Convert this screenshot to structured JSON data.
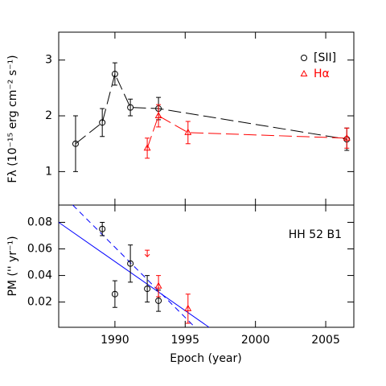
{
  "chart_data": [
    {
      "type": "line",
      "ylabel": "Fλ (10⁻¹⁵ erg cm⁻² s⁻¹)",
      "xlim": [
        1986,
        2007
      ],
      "xticks": [
        1990,
        1995,
        2000,
        2005
      ],
      "ylim": [
        0.4,
        3.5
      ],
      "yticks": [
        1,
        2,
        3
      ],
      "legend": "upper right",
      "series": [
        {
          "name": "[SII]",
          "color": "#000000",
          "marker": "circle",
          "x": [
            1987.2,
            1989.1,
            1990.0,
            1991.1,
            1993.1,
            2006.5
          ],
          "values": [
            1.5,
            1.88,
            2.75,
            2.15,
            2.13,
            1.58
          ],
          "errors": [
            0.5,
            0.25,
            0.2,
            0.15,
            0.2,
            0.2
          ]
        },
        {
          "name": "Hα",
          "color": "#ff0000",
          "marker": "triangle",
          "x": [
            1992.3,
            1993.1,
            1995.2,
            2006.5
          ],
          "values": [
            1.42,
            2.0,
            1.7,
            1.6
          ],
          "errors": [
            0.18,
            0.2,
            0.2,
            0.18
          ]
        }
      ]
    },
    {
      "type": "scatter",
      "xlabel": "Epoch (year)",
      "ylabel": "PM ('' yr⁻¹)",
      "annotation": "HH 52 B1",
      "xlim": [
        1986,
        2007
      ],
      "xticks": [
        1990,
        1995,
        2000,
        2005
      ],
      "ylim": [
        0.001,
        0.093
      ],
      "yticks": [
        0.02,
        0.04,
        0.06,
        0.08
      ],
      "series": [
        {
          "color": "#000000",
          "marker": "circle",
          "x": [
            1989.1,
            1990.0,
            1991.1,
            1992.3,
            1993.1
          ],
          "values": [
            0.075,
            0.026,
            0.049,
            0.03,
            0.021
          ],
          "errors": [
            0.005,
            0.01,
            0.014,
            0.01,
            0.008
          ]
        },
        {
          "color": "#ff0000",
          "marker": "triangle",
          "x": [
            1993.1,
            1995.2
          ],
          "values": [
            0.032,
            0.015
          ],
          "errors": [
            0.008,
            0.011
          ]
        }
      ],
      "upper_limit": {
        "color": "#ff0000",
        "x": [
          1992.3
        ],
        "values": [
          0.059
        ]
      },
      "fits": [
        {
          "color": "#0000ff",
          "dash": false,
          "x": [
            1986,
            1996.7
          ],
          "values": [
            0.08,
            0.001
          ]
        },
        {
          "color": "#0000ff",
          "dash": true,
          "x": [
            1987,
            1995.7
          ],
          "values": [
            0.093,
            0.001
          ]
        }
      ]
    }
  ]
}
